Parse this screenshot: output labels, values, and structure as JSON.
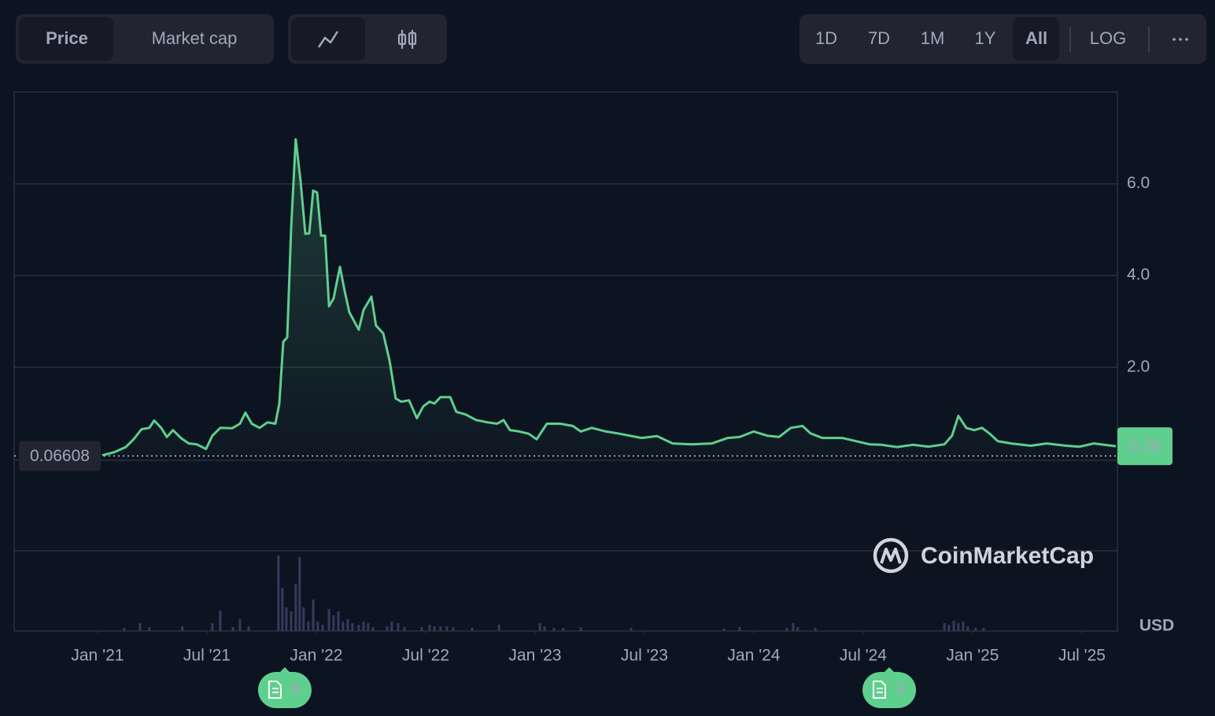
{
  "tabs": [
    "Price",
    "Market cap"
  ],
  "selected_tab": 0,
  "ranges": [
    "1D",
    "7D",
    "1M",
    "1Y",
    "All"
  ],
  "selected_range": 4,
  "scale_toggle": "LOG",
  "chart_data": {
    "type": "line",
    "x": [
      2021.022,
      2021.076,
      2021.129,
      2021.165,
      2021.201,
      2021.237,
      2021.259,
      2021.291,
      2021.317,
      2021.345,
      2021.381,
      2021.417,
      2021.453,
      2021.496,
      2021.525,
      2021.561,
      2021.615,
      2021.651,
      2021.676,
      2021.705,
      2021.741,
      2021.777,
      2021.813,
      2021.831,
      2021.849,
      2021.867,
      2021.885,
      2021.906,
      2021.928,
      2021.95,
      2021.968,
      2021.986,
      2022.004,
      2022.022,
      2022.04,
      2022.058,
      2022.079,
      2022.108,
      2022.129,
      2022.151,
      2022.194,
      2022.216,
      2022.252,
      2022.273,
      2022.306,
      2022.335,
      2022.363,
      2022.388,
      2022.424,
      2022.46,
      2022.489,
      2022.518,
      2022.54,
      2022.568,
      2022.612,
      2022.64,
      2022.683,
      2022.73,
      2022.784,
      2022.827,
      2022.856,
      2022.885,
      2022.928,
      2022.971,
      2023.007,
      2023.054,
      2023.115,
      2023.173,
      2023.209,
      2023.259,
      2023.324,
      2023.378,
      2023.432,
      2023.486,
      2023.558,
      2023.629,
      2023.719,
      2023.809,
      2023.881,
      2023.935,
      2024.0,
      2024.061,
      2024.115,
      2024.169,
      2024.223,
      2024.259,
      2024.313,
      2024.403,
      2024.475,
      2024.529,
      2024.583,
      2024.655,
      2024.727,
      2024.799,
      2024.871,
      2024.906,
      2024.935,
      2024.971,
      2025.007,
      2025.043,
      2025.079,
      2025.115,
      2025.176,
      2025.266,
      2025.338,
      2025.428,
      2025.489,
      2025.554,
      2025.655
    ],
    "series": [
      {
        "name": "Price",
        "color": "#5fcf8d",
        "values": [
          0.08,
          0.15,
          0.26,
          0.43,
          0.65,
          0.68,
          0.84,
          0.68,
          0.48,
          0.63,
          0.46,
          0.34,
          0.32,
          0.22,
          0.51,
          0.68,
          0.67,
          0.77,
          1.01,
          0.77,
          0.68,
          0.8,
          0.77,
          1.2,
          2.56,
          2.65,
          5.04,
          6.97,
          6.07,
          4.91,
          4.92,
          5.85,
          5.81,
          4.87,
          4.87,
          3.33,
          3.5,
          4.19,
          3.68,
          3.2,
          2.82,
          3.25,
          3.54,
          2.91,
          2.74,
          2.14,
          1.32,
          1.25,
          1.28,
          0.89,
          1.15,
          1.25,
          1.21,
          1.35,
          1.35,
          1.03,
          0.97,
          0.85,
          0.8,
          0.77,
          0.85,
          0.63,
          0.6,
          0.55,
          0.43,
          0.77,
          0.77,
          0.72,
          0.6,
          0.68,
          0.6,
          0.56,
          0.51,
          0.46,
          0.5,
          0.34,
          0.32,
          0.34,
          0.46,
          0.48,
          0.6,
          0.51,
          0.48,
          0.68,
          0.72,
          0.56,
          0.46,
          0.46,
          0.38,
          0.32,
          0.31,
          0.26,
          0.31,
          0.27,
          0.32,
          0.51,
          0.94,
          0.68,
          0.63,
          0.68,
          0.55,
          0.39,
          0.34,
          0.29,
          0.34,
          0.29,
          0.27,
          0.34,
          0.28
        ]
      }
    ],
    "xlim": [
      2020.619,
      2025.662
    ],
    "ylim": [
      -2,
      8
    ],
    "yticks": [
      {
        "value": 2,
        "label": "2.0"
      },
      {
        "value": 4,
        "label": "4.0"
      },
      {
        "value": 6,
        "label": "6.0"
      }
    ],
    "xticks": [
      {
        "value": 2021.0,
        "label": "Jan '21"
      },
      {
        "value": 2021.5,
        "label": "Jul '21"
      },
      {
        "value": 2022.0,
        "label": "Jan '22"
      },
      {
        "value": 2022.5,
        "label": "Jul '22"
      },
      {
        "value": 2023.0,
        "label": "Jan '23"
      },
      {
        "value": 2023.5,
        "label": "Jul '23"
      },
      {
        "value": 2024.0,
        "label": "Jan '24"
      },
      {
        "value": 2024.5,
        "label": "Jul '24"
      },
      {
        "value": 2025.0,
        "label": "Jan '25"
      },
      {
        "value": 2025.5,
        "label": "Jul '25"
      }
    ],
    "grid": true,
    "start_price": 0.06608,
    "last_price": 0.28,
    "currency": "USD",
    "watermark": "CoinMarketCap",
    "volume": {
      "color": "#353b5c",
      "ylim": [
        0,
        100
      ],
      "x": [
        2021.122,
        2021.194,
        2021.237,
        2021.388,
        2021.525,
        2021.561,
        2021.619,
        2021.651,
        2021.691,
        2021.827,
        2021.845,
        2021.863,
        2021.885,
        2021.906,
        2021.924,
        2021.942,
        2021.964,
        2021.986,
        2022.007,
        2022.029,
        2022.058,
        2022.079,
        2022.101,
        2022.122,
        2022.144,
        2022.165,
        2022.194,
        2022.216,
        2022.237,
        2022.259,
        2022.324,
        2022.345,
        2022.374,
        2022.403,
        2022.482,
        2022.518,
        2022.54,
        2022.568,
        2022.597,
        2022.626,
        2022.712,
        2022.835,
        2023.022,
        2023.043,
        2023.086,
        2023.129,
        2023.209,
        2023.439,
        2023.863,
        2023.935,
        2024.151,
        2024.18,
        2024.201,
        2024.281,
        2024.871,
        2024.892,
        2024.914,
        2024.935,
        2024.957,
        2024.978,
        2025.014,
        2025.05
      ],
      "values": [
        4,
        10,
        5,
        6,
        10,
        26,
        5,
        15,
        6,
        96,
        55,
        30,
        25,
        60,
        94,
        30,
        12,
        40,
        12,
        8,
        28,
        20,
        25,
        12,
        15,
        10,
        8,
        12,
        10,
        5,
        6,
        12,
        10,
        5,
        5,
        8,
        6,
        6,
        6,
        5,
        4,
        8,
        10,
        6,
        4,
        4,
        5,
        4,
        3,
        5,
        4,
        10,
        5,
        4,
        10,
        8,
        13,
        10,
        12,
        6,
        4,
        4
      ]
    },
    "events": [
      {
        "x": 2021.856,
        "count": 8
      },
      {
        "x": 2024.619,
        "count": 3
      }
    ]
  }
}
